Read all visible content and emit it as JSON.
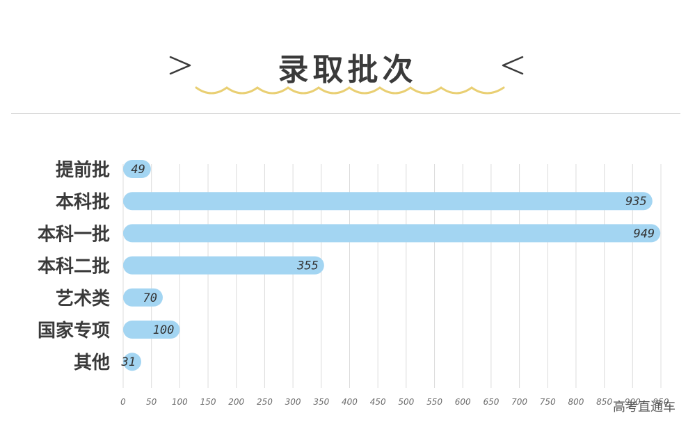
{
  "header": {
    "title": "录取批次"
  },
  "watermark": "高考直通车",
  "colors": {
    "bar": "#a3d5f2",
    "wave": "#e9cf73",
    "grid": "#dcdcdc",
    "text": "#3a3a3a"
  },
  "chart_data": {
    "type": "bar",
    "orientation": "horizontal",
    "title": "",
    "xlabel": "",
    "ylabel": "",
    "categories": [
      "提前批",
      "本科批",
      "本科一批",
      "本科二批",
      "艺术类",
      "国家专项",
      "其他"
    ],
    "values": [
      49,
      935,
      949,
      355,
      70,
      100,
      31
    ],
    "xlim": [
      0,
      950
    ],
    "xticks": [
      0,
      50,
      100,
      150,
      200,
      250,
      300,
      350,
      400,
      450,
      500,
      550,
      600,
      650,
      700,
      750,
      800,
      850,
      900,
      950
    ],
    "grid": "vertical",
    "legend": "none"
  }
}
